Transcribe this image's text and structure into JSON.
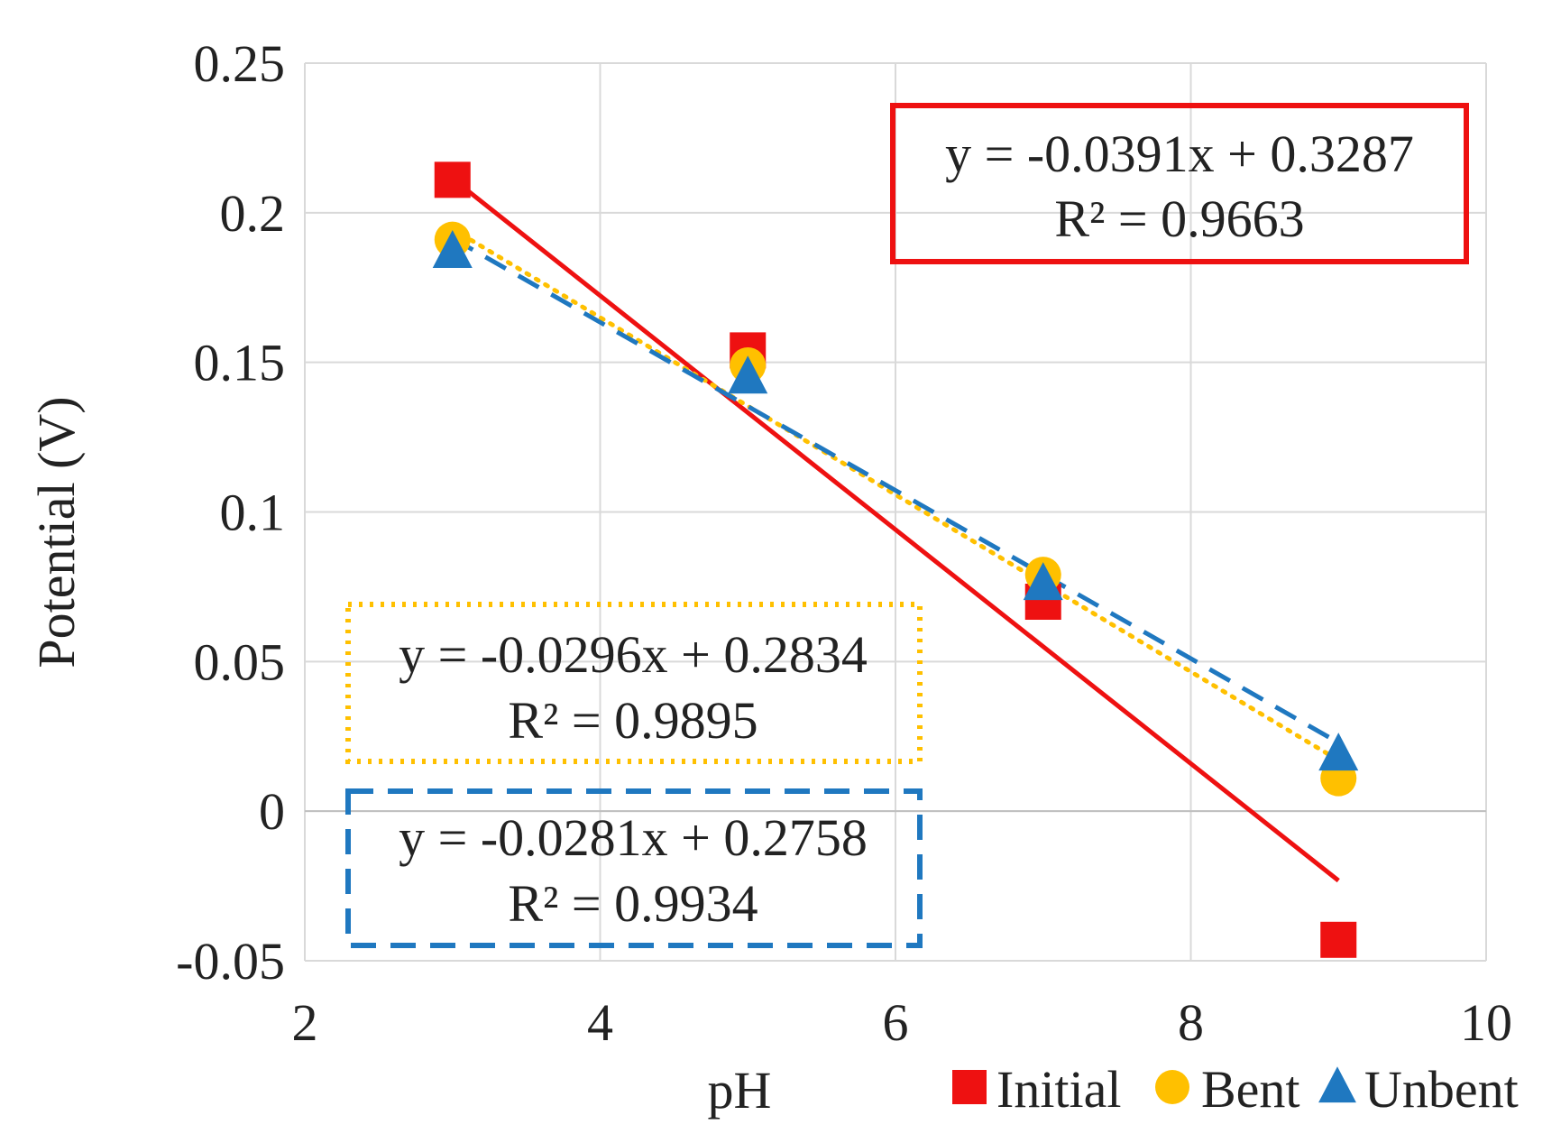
{
  "chart_data": {
    "type": "scatter",
    "xlabel": "pH",
    "ylabel": "Potential (V)",
    "xlim": [
      2,
      10
    ],
    "ylim": [
      -0.05,
      0.25
    ],
    "xticks": [
      2,
      4,
      6,
      8,
      10
    ],
    "yticks": [
      -0.05,
      0,
      0.05,
      0.1,
      0.15,
      0.2,
      0.25
    ],
    "xtick_labels": [
      "2",
      "4",
      "6",
      "8",
      "10"
    ],
    "ytick_labels": [
      "-0.05",
      "0",
      "0.05",
      "0.1",
      "0.15",
      "0.2",
      "0.25"
    ],
    "grid": true,
    "legend_position": "bottom-right",
    "series": [
      {
        "name": "Initial",
        "marker": "square",
        "color": "#ee1111",
        "x": [
          3,
          5,
          7,
          9
        ],
        "y": [
          0.211,
          0.154,
          0.07,
          -0.043
        ],
        "trendline": {
          "slope": -0.0391,
          "intercept": 0.3287,
          "x_range": [
            3,
            9
          ],
          "style": "solid"
        },
        "equation": "y = -0.0391x + 0.3287",
        "r2": "R² = 0.9663"
      },
      {
        "name": "Bent",
        "marker": "circle",
        "color": "#ffc000",
        "x": [
          3,
          5,
          7,
          9
        ],
        "y": [
          0.191,
          0.149,
          0.079,
          0.011
        ],
        "trendline": {
          "slope": -0.0296,
          "intercept": 0.2834,
          "x_range": [
            3,
            9
          ],
          "style": "dotted"
        },
        "equation": "y = -0.0296x + 0.2834",
        "r2": "R² = 0.9895"
      },
      {
        "name": "Unbent",
        "marker": "triangle",
        "color": "#1f78c0",
        "x": [
          3,
          5,
          7,
          9
        ],
        "y": [
          0.187,
          0.145,
          0.076,
          0.019
        ],
        "trendline": {
          "slope": -0.0281,
          "intercept": 0.2758,
          "x_range": [
            3,
            9
          ],
          "style": "dashed"
        },
        "equation": "y = -0.0281x + 0.2758",
        "r2": "R² = 0.9934"
      }
    ]
  }
}
